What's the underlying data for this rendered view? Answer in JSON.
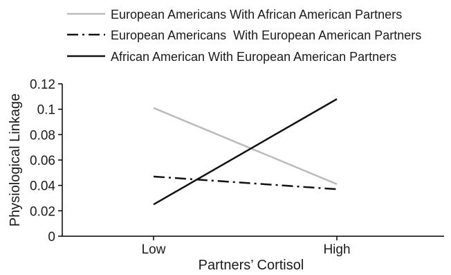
{
  "chart_data": {
    "type": "line",
    "xlabel": "Partners’ Cortisol",
    "ylabel": "Physiological Linkage",
    "categories": [
      "Low",
      "High"
    ],
    "ylim": [
      0,
      0.12
    ],
    "yticks": [
      "0",
      "0.02",
      "0.04",
      "0.06",
      "0.08",
      "0.1",
      "0.12"
    ],
    "grid": false,
    "legend_position": "top",
    "series": [
      {
        "name": "European Americans With African American Partners",
        "values": [
          0.101,
          0.041
        ],
        "color": "#bbbbbb",
        "style": "solid"
      },
      {
        "name": "European Americans  With European American Partners",
        "values": [
          0.047,
          0.037
        ],
        "color": "#111111",
        "style": "dashdot"
      },
      {
        "name": "African American With European American Partners",
        "values": [
          0.025,
          0.108
        ],
        "color": "#111111",
        "style": "solid"
      }
    ]
  }
}
